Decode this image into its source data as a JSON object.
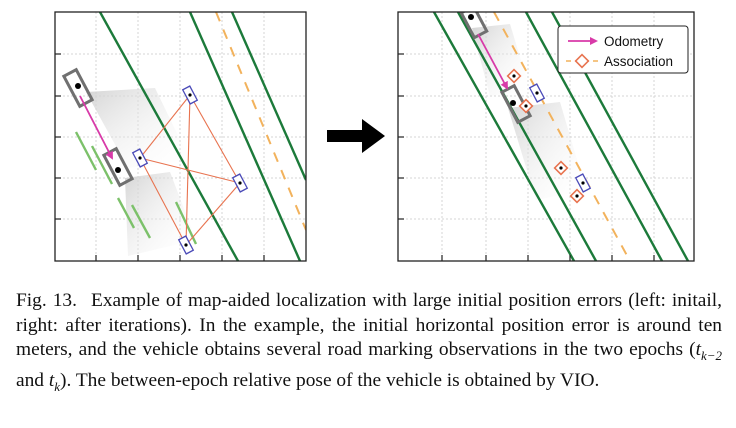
{
  "legend": {
    "odometry_label": "Odometry",
    "association_label": "Association"
  },
  "colors": {
    "road_boundary": "#1c7a3a",
    "lane_dash": "#f2b25c",
    "odometry": "#d83aa8",
    "association": "#e8734f",
    "observation_box": "#4b4bb8",
    "vehicle_box": "#707070",
    "observation_stripe": "#7cc16a",
    "arrow": "#000000"
  },
  "icons": {
    "between_panels": "right-arrow-icon"
  },
  "caption": {
    "label": "Fig. 13.",
    "part1": "Example of map-aided localization with large initial position errors (left: initail, right: after iterations). In the example, the initial horizontal position error is around ten meters, and the vehicle obtains several road marking observations in the two epochs (",
    "t_symbol_1": "t",
    "sub_1": "k−2",
    "and_word": " and ",
    "t_symbol_2": "t",
    "sub_2": "k",
    "part2": "). The between-epoch relative pose of the vehicle is obtained by VIO."
  }
}
